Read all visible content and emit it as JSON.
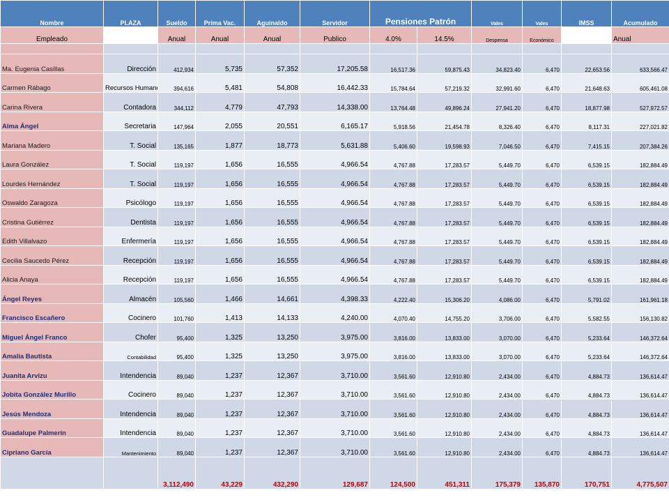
{
  "header": {
    "row1": {
      "nombre": "Nombre",
      "plaza": "PLAZA",
      "sueldo": "Sueldo",
      "prima": "Prima Vac.",
      "aguinaldo": "Aguinaldo",
      "servidor": "Servidor",
      "pensiones": "Pensiones Patrón",
      "vales1": "Vales",
      "vales2": "Vales",
      "imss": "IMSS",
      "acumulado": "Acumulado"
    },
    "row2": {
      "empleado": "Empleado",
      "anual1": "Anual",
      "anual2": "Anual",
      "anual3": "Anual",
      "publico": "Publico",
      "pct1": "4.0%",
      "pct2": "14.5%",
      "despensa": "Despensa",
      "economico": "Económico",
      "anual4": "Anual"
    }
  },
  "rows": [
    {
      "name": "Ma. Eugenia Casillas",
      "plaza": "Dirección",
      "sueldo": "412,934",
      "prima": "5,735",
      "aguinaldo": "57,352",
      "servidor": "17,205.58",
      "p4": "16,517.36",
      "p145": "59,875.43",
      "despensa": "34,823.40",
      "economico": "6,470",
      "imss": "22,653.56",
      "acumulado": "633,566.47"
    },
    {
      "name": "Carmen Rábago",
      "plaza": "Recursos Humanos",
      "sueldo": "394,616",
      "prima": "5,481",
      "aguinaldo": "54,808",
      "servidor": "16,442.33",
      "p4": "15,784.64",
      "p145": "57,219.32",
      "despensa": "32,991.60",
      "economico": "6,470",
      "imss": "21,648.63",
      "acumulado": "605,461.08"
    },
    {
      "name": "Carina Rivera",
      "plaza": "Contadora",
      "sueldo": "344,112",
      "prima": "4,779",
      "aguinaldo": "47,793",
      "servidor": "14,338.00",
      "p4": "13,764.48",
      "p145": "49,896.24",
      "despensa": "27,941.20",
      "economico": "6,470",
      "imss": "18,877.98",
      "acumulado": "527,972.57"
    },
    {
      "name": "Alma Ángel",
      "plaza": "Secretaria",
      "sueldo": "147,964",
      "prima": "2,055",
      "aguinaldo": "20,551",
      "servidor": "6,165.17",
      "p4": "5,918.56",
      "p145": "21,454.78",
      "despensa": "8,326.40",
      "economico": "6,470",
      "imss": "8,117.31",
      "acumulado": "227,021.82"
    },
    {
      "name": "Mariana Madero",
      "plaza": "T. Social",
      "sueldo": "135,165",
      "prima": "1,877",
      "aguinaldo": "18,773",
      "servidor": "5,631.88",
      "p4": "5,406.60",
      "p145": "19,598.93",
      "despensa": "7,046.50",
      "economico": "6,470",
      "imss": "7,415.15",
      "acumulado": "207,384.26"
    },
    {
      "name": "Laura González",
      "plaza": "T. Social",
      "sueldo": "119,197",
      "prima": "1,656",
      "aguinaldo": "16,555",
      "servidor": "4,966.54",
      "p4": "4,767.88",
      "p145": "17,283.57",
      "despensa": "5,449.70",
      "economico": "6,470",
      "imss": "6,539.15",
      "acumulado": "182,884.49"
    },
    {
      "name": "Lourdes Hernández",
      "plaza": "T. Social",
      "sueldo": "119,197",
      "prima": "1,656",
      "aguinaldo": "16,555",
      "servidor": "4,966.54",
      "p4": "4,767.88",
      "p145": "17,283.57",
      "despensa": "5,449.70",
      "economico": "6,470",
      "imss": "6,539.15",
      "acumulado": "182,884.49"
    },
    {
      "name": "Oswaldo Zaragoza",
      "plaza": "Psicólogo",
      "sueldo": "119,197",
      "prima": "1,656",
      "aguinaldo": "16,555",
      "servidor": "4,966.54",
      "p4": "4,767.88",
      "p145": "17,283.57",
      "despensa": "5,449.70",
      "economico": "6,470",
      "imss": "6,539.15",
      "acumulado": "182,884.49"
    },
    {
      "name": "Cristina Gutiérrez",
      "plaza": "Dentista",
      "sueldo": "119,197",
      "prima": "1,656",
      "aguinaldo": "16,555",
      "servidor": "4,966.54",
      "p4": "4,767.88",
      "p145": "17,283.57",
      "despensa": "5,449.70",
      "economico": "6,470",
      "imss": "6,539.15",
      "acumulado": "182,884.49"
    },
    {
      "name": "Edith Villalvazo",
      "plaza": "Enfermería",
      "sueldo": "119,197",
      "prima": "1,656",
      "aguinaldo": "16,555",
      "servidor": "4,966.54",
      "p4": "4,767.88",
      "p145": "17,283.57",
      "despensa": "5,449.70",
      "economico": "6,470",
      "imss": "6,539.15",
      "acumulado": "182,884.49"
    },
    {
      "name": "Cecilia Saucedo Pérez",
      "plaza": "Recepción",
      "sueldo": "119,197",
      "prima": "1,656",
      "aguinaldo": "16,555",
      "servidor": "4,966.54",
      "p4": "4,767.88",
      "p145": "17,283.57",
      "despensa": "5,449.70",
      "economico": "6,470",
      "imss": "6,539.15",
      "acumulado": "182,884.49"
    },
    {
      "name": "Alicia Anaya",
      "plaza": "Recepción",
      "sueldo": "119,197",
      "prima": "1,656",
      "aguinaldo": "16,555",
      "servidor": "4,966.54",
      "p4": "4,767.88",
      "p145": "17,283.57",
      "despensa": "5,449.70",
      "economico": "6,470",
      "imss": "6,539.15",
      "acumulado": "182,884.49"
    },
    {
      "name": "Ángel Reyes",
      "plaza": "Almacén",
      "sueldo": "105,560",
      "prima": "1,466",
      "aguinaldo": "14,661",
      "servidor": "4,398.33",
      "p4": "4,222.40",
      "p145": "15,306.20",
      "despensa": "4,086.00",
      "economico": "6,470",
      "imss": "5,791.02",
      "acumulado": "161,961.18"
    },
    {
      "name": "Francisco Escañero",
      "plaza": "Cocinero",
      "sueldo": "101,760",
      "prima": "1,413",
      "aguinaldo": "14,133",
      "servidor": "4,240.00",
      "p4": "4,070.40",
      "p145": "14,755.20",
      "despensa": "3,706.00",
      "economico": "6,470",
      "imss": "5,582.55",
      "acumulado": "156,130.82"
    },
    {
      "name": "Miguel Ángel Franco",
      "plaza": "Chofer",
      "sueldo": "95,400",
      "prima": "1,325",
      "aguinaldo": "13,250",
      "servidor": "3,975.00",
      "p4": "3,816.00",
      "p145": "13,833.00",
      "despensa": "3,070.00",
      "economico": "6,470",
      "imss": "5,233.64",
      "acumulado": "146,372.64"
    },
    {
      "name": "Amalia Bautista",
      "plaza": "Contabilidad",
      "sueldo": "95,400",
      "prima": "1,325",
      "aguinaldo": "13,250",
      "servidor": "3,975.00",
      "p4": "3,816.00",
      "p145": "13,833.00",
      "despensa": "3,070.00",
      "economico": "6,470",
      "imss": "5,233.64",
      "acumulado": "146,372.64"
    },
    {
      "name": "Juanita Arvizu",
      "plaza": "Intendencia",
      "sueldo": "89,040",
      "prima": "1,237",
      "aguinaldo": "12,367",
      "servidor": "3,710.00",
      "p4": "3,561.60",
      "p145": "12,910.80",
      "despensa": "2,434.00",
      "economico": "6,470",
      "imss": "4,884.73",
      "acumulado": "136,614.47"
    },
    {
      "name": "Jobita González Murillo",
      "plaza": "Cocinero",
      "sueldo": "89,040",
      "prima": "1,237",
      "aguinaldo": "12,367",
      "servidor": "3,710.00",
      "p4": "3,561.60",
      "p145": "12,910.80",
      "despensa": "2,434.00",
      "economico": "6,470",
      "imss": "4,884.73",
      "acumulado": "136,614.47"
    },
    {
      "name": "Jesús Mendoza",
      "plaza": "Intendencia",
      "sueldo": "89,040",
      "prima": "1,237",
      "aguinaldo": "12,367",
      "servidor": "3,710.00",
      "p4": "3,561.60",
      "p145": "12,910.80",
      "despensa": "2,434.00",
      "economico": "6,470",
      "imss": "4,884.73",
      "acumulado": "136,614.47"
    },
    {
      "name": "Guadalupe Palmerín",
      "plaza": "Intendencia",
      "sueldo": "89,040",
      "prima": "1,237",
      "aguinaldo": "12,367",
      "servidor": "3,710.00",
      "p4": "3,561.60",
      "p145": "12,910.80",
      "despensa": "2,434.00",
      "economico": "6,470",
      "imss": "4,884.73",
      "acumulado": "136,614.47"
    },
    {
      "name": "Cipriano García",
      "plaza": "Mantenimiento",
      "sueldo": "89,040",
      "prima": "1,237",
      "aguinaldo": "12,367",
      "servidor": "3,710.00",
      "p4": "3,561.60",
      "p145": "12,910.80",
      "despensa": "2,434.00",
      "economico": "6,470",
      "imss": "4,884.73",
      "acumulado": "136,614.47"
    }
  ],
  "totals": {
    "sueldo": "3,112,490",
    "prima": "43,229",
    "aguinaldo": "432,290",
    "servidor": "129,687",
    "p4": "124,500",
    "p145": "451,311",
    "despensa": "175,379",
    "economico": "135,870",
    "imss": "170,751",
    "acumulado": "4,775,507"
  },
  "colors": {
    "header_blue": "#4f81bd",
    "name_pink": "#e6b9b8",
    "row_light": "#e9edf4",
    "row_dark": "#d0d8e8",
    "total_red": "#c00000"
  }
}
